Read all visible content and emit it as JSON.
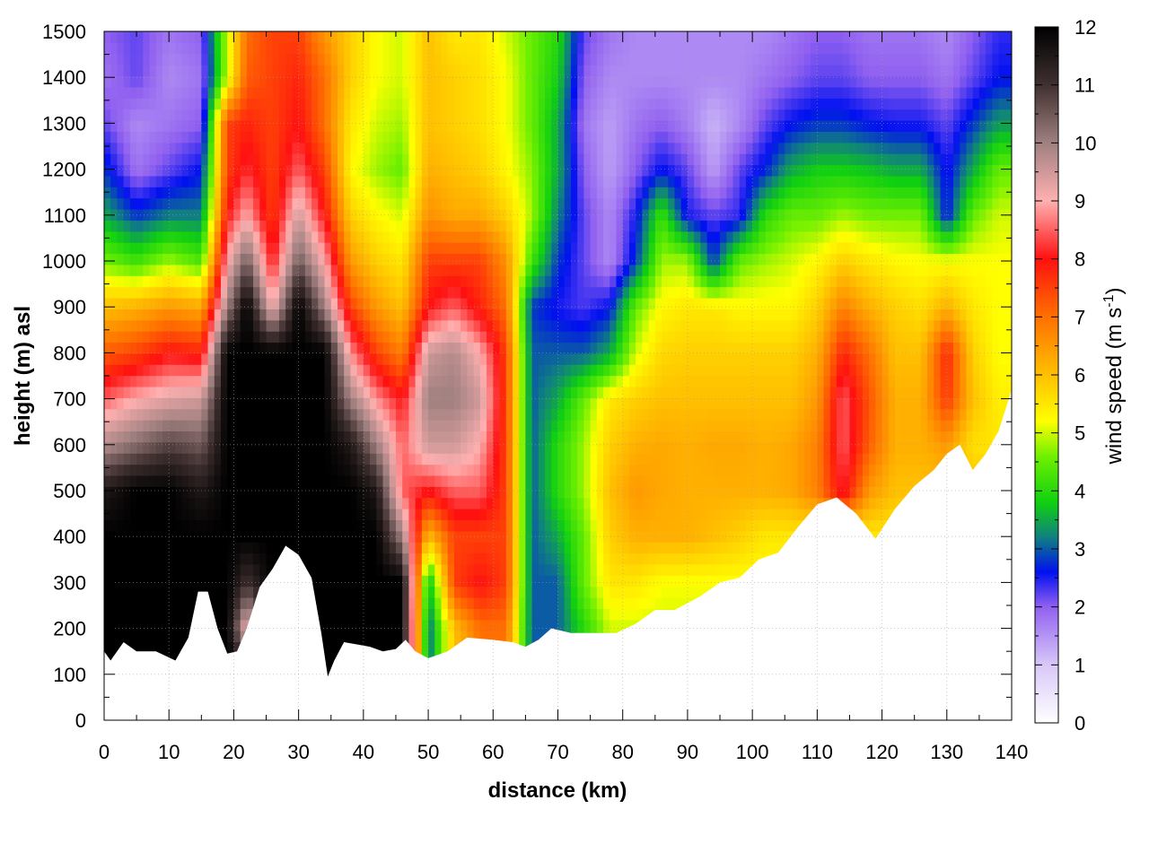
{
  "chart_data": {
    "type": "heatmap",
    "xlabel": "distance (km)",
    "ylabel": "height (m) asl",
    "colorbar_label": "wind speed",
    "colorbar_unit_prefix": "(m s",
    "colorbar_unit_exponent": "-1",
    "colorbar_unit_suffix": ")",
    "xlim": [
      0,
      140
    ],
    "ylim": [
      0,
      1500
    ],
    "clim": [
      0,
      12
    ],
    "x_ticks": [
      "0",
      "10",
      "20",
      "30",
      "40",
      "50",
      "60",
      "70",
      "80",
      "90",
      "100",
      "110",
      "120",
      "130",
      "140"
    ],
    "y_ticks": [
      "0",
      "100",
      "200",
      "300",
      "400",
      "500",
      "600",
      "700",
      "800",
      "900",
      "1000",
      "1100",
      "1200",
      "1300",
      "1400",
      "1500"
    ],
    "colorbar_ticks": [
      "0",
      "1",
      "2",
      "3",
      "4",
      "5",
      "6",
      "7",
      "8",
      "9",
      "10",
      "11",
      "12"
    ],
    "grid": true,
    "colorscale": [
      {
        "v": 0,
        "c": "#ffffff"
      },
      {
        "v": 1,
        "c": "#d8c8f8"
      },
      {
        "v": 2,
        "c": "#9060f0"
      },
      {
        "v": 2.6,
        "c": "#0010f0"
      },
      {
        "v": 3.2,
        "c": "#108080"
      },
      {
        "v": 3.8,
        "c": "#10d010"
      },
      {
        "v": 4.6,
        "c": "#70f000"
      },
      {
        "v": 5.2,
        "c": "#ffff00"
      },
      {
        "v": 6,
        "c": "#ffc000"
      },
      {
        "v": 7,
        "c": "#ff7000"
      },
      {
        "v": 8,
        "c": "#ff1010"
      },
      {
        "v": 9,
        "c": "#ffb0b0"
      },
      {
        "v": 10,
        "c": "#a08080"
      },
      {
        "v": 11,
        "c": "#403030"
      },
      {
        "v": 12,
        "c": "#000000"
      }
    ],
    "terrain": [
      [
        0,
        150
      ],
      [
        1,
        130
      ],
      [
        3,
        170
      ],
      [
        5,
        150
      ],
      [
        8,
        150
      ],
      [
        11,
        130
      ],
      [
        13,
        180
      ],
      [
        14.5,
        280
      ],
      [
        16,
        280
      ],
      [
        17.5,
        200
      ],
      [
        19,
        145
      ],
      [
        20.5,
        150
      ],
      [
        22,
        200
      ],
      [
        24,
        290
      ],
      [
        26,
        330
      ],
      [
        28,
        380
      ],
      [
        30,
        360
      ],
      [
        32,
        310
      ],
      [
        33.5,
        190
      ],
      [
        34.5,
        95
      ],
      [
        35.5,
        130
      ],
      [
        37,
        170
      ],
      [
        39,
        165
      ],
      [
        41,
        160
      ],
      [
        43,
        150
      ],
      [
        45,
        155
      ],
      [
        46.5,
        175
      ],
      [
        48,
        150
      ],
      [
        50,
        135
      ],
      [
        53,
        150
      ],
      [
        56,
        180
      ],
      [
        60,
        175
      ],
      [
        63,
        170
      ],
      [
        65,
        160
      ],
      [
        67,
        175
      ],
      [
        69,
        200
      ],
      [
        72,
        190
      ],
      [
        75,
        190
      ],
      [
        79,
        190
      ],
      [
        82,
        210
      ],
      [
        85,
        240
      ],
      [
        88,
        240
      ],
      [
        92,
        270
      ],
      [
        95,
        300
      ],
      [
        98,
        310
      ],
      [
        101,
        350
      ],
      [
        104,
        365
      ],
      [
        107,
        420
      ],
      [
        110,
        470
      ],
      [
        113,
        485
      ],
      [
        116,
        450
      ],
      [
        119,
        395
      ],
      [
        122,
        460
      ],
      [
        125,
        510
      ],
      [
        128,
        545
      ],
      [
        130,
        580
      ],
      [
        132,
        600
      ],
      [
        134,
        545
      ],
      [
        136,
        580
      ],
      [
        138,
        630
      ],
      [
        140,
        720
      ]
    ],
    "wind_speed": {
      "x": [
        0,
        5,
        10,
        15,
        19,
        22,
        26,
        30,
        34,
        38,
        42,
        46,
        50,
        54,
        58,
        62,
        66,
        70,
        74,
        78,
        82,
        86,
        90,
        94,
        98,
        102,
        106,
        110,
        114,
        118,
        122,
        126,
        130,
        134,
        138,
        140
      ],
      "y": [
        100,
        200,
        300,
        400,
        500,
        600,
        700,
        800,
        900,
        1000,
        1100,
        1200,
        1300,
        1400,
        1500
      ],
      "v": [
        [
          12,
          12,
          12,
          12,
          12,
          12,
          12,
          12,
          12,
          12,
          12,
          12,
          3,
          6,
          7,
          7,
          3,
          3,
          4,
          5,
          5,
          5,
          5,
          5,
          5,
          5,
          5,
          5,
          5,
          5,
          5,
          5,
          5,
          5,
          5,
          5
        ],
        [
          12,
          12,
          12,
          12,
          12,
          9,
          12,
          12,
          12,
          12,
          12,
          12,
          3,
          6,
          7,
          7,
          3,
          3,
          4,
          5,
          5,
          5,
          5,
          5,
          5,
          5,
          5,
          5,
          5,
          5,
          5,
          5,
          5,
          5,
          5,
          5
        ],
        [
          12,
          12,
          12,
          12,
          12,
          11,
          12,
          12,
          12,
          12,
          12,
          12,
          3.5,
          7.5,
          8,
          7.5,
          3,
          3,
          4.5,
          5.5,
          5.5,
          5.2,
          5.2,
          5.2,
          5.2,
          5.2,
          5.2,
          5.2,
          5.2,
          5.2,
          5.2,
          5.2,
          5.2,
          5.2,
          5.2,
          5.2
        ],
        [
          12,
          12,
          12,
          12,
          12,
          12,
          12,
          12,
          12,
          12,
          12,
          10,
          6,
          7.5,
          7.5,
          7.5,
          3,
          3.5,
          4.5,
          5.8,
          6.2,
          6.2,
          6.2,
          6,
          5.8,
          5.5,
          5.5,
          5.5,
          5.5,
          5.5,
          5.5,
          5.5,
          5.5,
          5.5,
          5.5,
          5.5
        ],
        [
          11.5,
          12,
          12,
          11.5,
          12,
          12,
          12,
          12,
          12,
          12,
          11.5,
          8.5,
          8,
          8.5,
          8.5,
          7.5,
          3,
          4,
          4.8,
          6,
          6.5,
          6.3,
          6.2,
          6.2,
          6.2,
          6.2,
          6.3,
          6.8,
          8.2,
          6.5,
          6,
          6,
          6,
          6,
          6,
          6
        ],
        [
          9.8,
          10.3,
          10.8,
          10.5,
          12,
          12,
          12,
          12,
          12,
          11.5,
          10,
          8.5,
          9.5,
          9.5,
          9,
          7.5,
          3,
          4,
          4.8,
          5.8,
          6.2,
          6.3,
          6.2,
          6.3,
          6.3,
          6.2,
          6.3,
          6.8,
          8.5,
          7.2,
          6.2,
          6.2,
          6.5,
          5.6,
          5.5,
          5.5
        ],
        [
          8.5,
          9,
          9.3,
          9.5,
          12,
          12,
          12,
          12,
          12,
          10,
          8.8,
          8,
          10,
          10,
          9.5,
          7.5,
          3,
          3.5,
          4.5,
          5.5,
          5.8,
          6,
          6,
          6,
          6,
          6,
          6,
          6.5,
          8.5,
          7.3,
          6.2,
          6.2,
          7.6,
          6,
          5.4,
          5.4
        ],
        [
          7.2,
          7.5,
          8,
          7.8,
          12,
          12,
          12,
          12,
          12,
          8.8,
          7.5,
          6.8,
          9.5,
          9.8,
          9,
          7.5,
          3,
          3,
          3,
          3.5,
          5,
          5.7,
          5.8,
          5.8,
          5.8,
          5.8,
          5.8,
          6.2,
          7.8,
          7,
          6,
          6,
          7.8,
          5.8,
          5.2,
          5.2
        ],
        [
          6,
          6.2,
          6.5,
          6.3,
          10,
          12,
          9,
          12,
          10,
          7.5,
          6.5,
          6,
          8,
          8.5,
          7.8,
          7,
          2.8,
          2.5,
          2.3,
          2.6,
          4.5,
          5.3,
          5.5,
          5.5,
          5.3,
          5.3,
          5.3,
          5.8,
          6.8,
          6.2,
          5.8,
          5.6,
          6.2,
          5.5,
          5.2,
          5.2
        ],
        [
          4.6,
          4.2,
          4.8,
          4.3,
          9,
          10.5,
          8,
          10.5,
          9,
          6.5,
          5.8,
          5.5,
          7.5,
          7.5,
          7.5,
          6.6,
          4.2,
          2.8,
          2.2,
          1.6,
          2.8,
          4.8,
          4.8,
          2.8,
          4.5,
          4.8,
          5,
          5.3,
          5.8,
          5.5,
          5.3,
          5.2,
          5.2,
          5.2,
          5.2,
          5.2
        ],
        [
          3.5,
          2.8,
          3.2,
          3.2,
          8,
          9,
          7.5,
          9.5,
          8,
          5.8,
          5.3,
          5,
          6.6,
          6.3,
          6.3,
          5.8,
          4.8,
          3.2,
          2.2,
          1.6,
          2.5,
          4.2,
          2.5,
          2.2,
          2.4,
          4,
          4.5,
          4.5,
          4.8,
          4.6,
          4.6,
          4.6,
          2.6,
          4.5,
          5,
          5
        ],
        [
          2.8,
          1.8,
          2.2,
          2.6,
          7.5,
          8.2,
          7.5,
          8.5,
          7.5,
          5.3,
          4.8,
          4.5,
          6.2,
          6,
          5.8,
          5.3,
          4.7,
          3.5,
          2,
          1.4,
          2,
          2.6,
          2.2,
          1.4,
          2.2,
          2.7,
          3.5,
          3.8,
          3.8,
          3.7,
          3.5,
          3.5,
          2.5,
          3.5,
          4.5,
          4.5
        ],
        [
          2.2,
          1.6,
          1.8,
          2,
          7.5,
          7.8,
          7.5,
          8,
          7,
          5.5,
          5,
          4.8,
          6,
          5.8,
          5.6,
          5.2,
          4.5,
          3.5,
          1.8,
          1.4,
          1.8,
          2,
          1.7,
          1.2,
          1.6,
          2.2,
          2.6,
          2.8,
          2.8,
          2.6,
          2.5,
          2.5,
          2.2,
          2.8,
          3.4,
          3.4
        ],
        [
          1.8,
          2.2,
          1.6,
          1.8,
          5,
          7.2,
          7.5,
          7.8,
          7,
          5.8,
          5.2,
          5,
          6,
          5.8,
          5.6,
          5.2,
          4.5,
          3.8,
          2,
          1.6,
          1.6,
          1.6,
          1.6,
          1.6,
          1.6,
          1.8,
          2,
          2.2,
          2.2,
          2,
          2,
          2,
          1.8,
          2.2,
          2.6,
          2.6
        ],
        [
          2,
          2.2,
          1.8,
          2,
          5,
          7,
          7.5,
          7.5,
          6.5,
          5.8,
          5.2,
          5,
          6,
          5.5,
          5.5,
          5,
          4.5,
          4,
          2.2,
          1.8,
          1.6,
          1.6,
          1.6,
          1.6,
          1.6,
          1.6,
          1.8,
          2,
          2,
          1.8,
          1.8,
          1.8,
          1.6,
          2,
          2.4,
          2.4
        ]
      ]
    }
  }
}
